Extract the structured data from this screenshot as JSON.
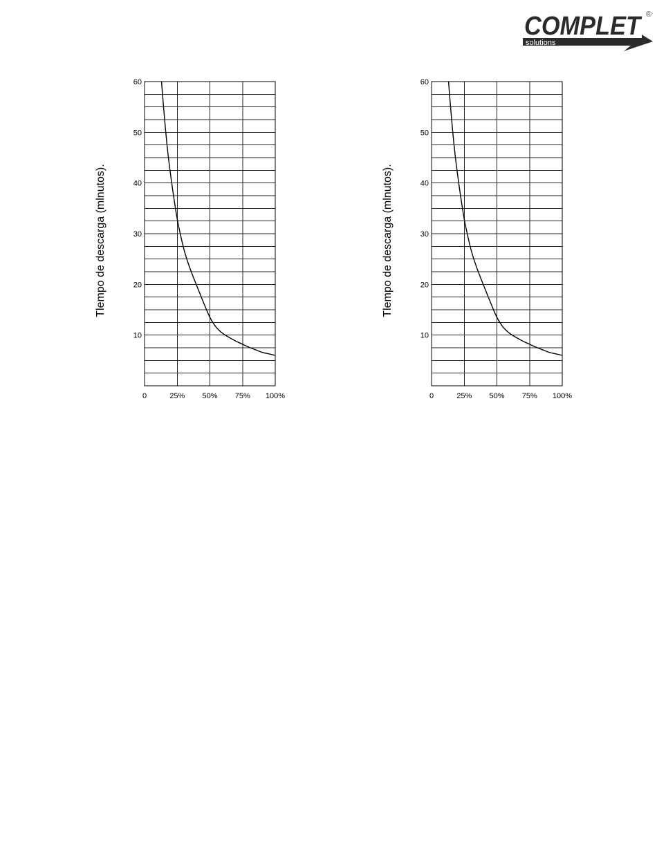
{
  "logo": {
    "wordmark": "COMPLET",
    "tagline": "solutions",
    "registered": "®",
    "colors": {
      "dark": "#2b2b2b",
      "accent": "#ffffff"
    }
  },
  "chart_data": [
    {
      "type": "line",
      "ylabel": "Tlempo de descarga (mlnutos).",
      "xlabel": "",
      "title": "",
      "x_tick_labels": [
        "0",
        "25%",
        "50%",
        "75%",
        "100%"
      ],
      "x_ticks": [
        0,
        25,
        50,
        75,
        100
      ],
      "y_tick_labels": [
        "60",
        "50",
        "40",
        "30",
        "20",
        "10"
      ],
      "y_ticks": [
        60,
        50,
        40,
        30,
        20,
        10
      ],
      "xlim": [
        0,
        100
      ],
      "ylim": [
        0,
        60
      ],
      "grid": true,
      "y_grid_step": 2.5,
      "x": [
        13,
        14,
        16,
        18,
        20,
        22,
        25,
        28,
        31,
        35,
        40,
        45,
        50,
        55,
        60,
        65,
        70,
        75,
        80,
        85,
        90,
        95,
        100
      ],
      "y": [
        60,
        56.7,
        50.7,
        45.6,
        41.5,
        37.8,
        32.9,
        29.2,
        26.1,
        23.0,
        19.7,
        16.5,
        13.5,
        11.5,
        10.3,
        9.5,
        8.8,
        8.2,
        7.6,
        7.1,
        6.6,
        6.3,
        6.0
      ]
    },
    {
      "type": "line",
      "ylabel": "Tlempo de descarga (mlnutos).",
      "xlabel": "",
      "title": "",
      "x_tick_labels": [
        "0",
        "25%",
        "50%",
        "75%",
        "100%"
      ],
      "x_ticks": [
        0,
        25,
        50,
        75,
        100
      ],
      "y_tick_labels": [
        "60",
        "50",
        "40",
        "30",
        "20",
        "10"
      ],
      "y_ticks": [
        60,
        50,
        40,
        30,
        20,
        10
      ],
      "xlim": [
        0,
        100
      ],
      "ylim": [
        0,
        60
      ],
      "grid": true,
      "y_grid_step": 2.5,
      "x": [
        13,
        14,
        16,
        18,
        20,
        22,
        25,
        28,
        31,
        35,
        40,
        45,
        50,
        55,
        60,
        65,
        70,
        75,
        80,
        85,
        90,
        95,
        100
      ],
      "y": [
        60,
        56.7,
        50.7,
        45.6,
        41.5,
        37.8,
        32.9,
        29.2,
        26.1,
        23.0,
        19.7,
        16.5,
        13.5,
        11.5,
        10.3,
        9.5,
        8.8,
        8.2,
        7.6,
        7.1,
        6.6,
        6.3,
        6.0
      ]
    }
  ]
}
